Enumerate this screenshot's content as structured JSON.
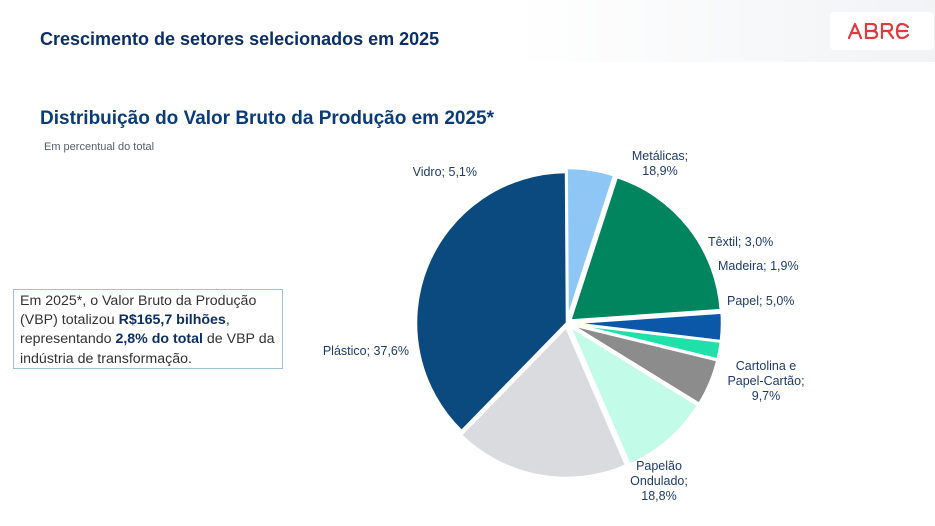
{
  "header": {
    "section_title": "Crescimento de setores selecionados em 2025",
    "logo_text": "ABRE"
  },
  "info_box": {
    "part1": "Em 2025*, o Valor Bruto da Produção (VBP) totalizou ",
    "bold1": "R$165,7 bilhões",
    "part2": ", representando ",
    "bold2": "2,8% do total",
    "part3": " de VBP da indústria de transformação."
  },
  "colors": {
    "title": "#0b3c7a",
    "section_title": "#0b2f66",
    "label": "#1f3b6e",
    "logo": "#e0393e"
  },
  "chart_data": {
    "type": "pie",
    "title": "Distribuição do Valor Bruto da Produção em 2025*",
    "subtitle": "Em percentual do total",
    "unit": "%",
    "slices": [
      {
        "name": "Metálicas",
        "value": 18.9,
        "label_lines": [
          "Metálicas;",
          "18,9%"
        ],
        "color": "#00855f"
      },
      {
        "name": "Têxtil",
        "value": 3.0,
        "label_lines": [
          "Têxtil; 3,0%"
        ],
        "color": "#0b58a8"
      },
      {
        "name": "Madeira",
        "value": 1.9,
        "label_lines": [
          "Madeira; 1,9%"
        ],
        "color": "#1fe0a8"
      },
      {
        "name": "Papel",
        "value": 5.0,
        "label_lines": [
          "Papel; 5,0%"
        ],
        "color": "#8c8c8c"
      },
      {
        "name": "Cartolina e Papel-Cartão",
        "value": 9.7,
        "label_lines": [
          "Cartolina e",
          "Papel-Cartão;",
          "9,7%"
        ],
        "color": "#c3fbe9"
      },
      {
        "name": "Papelão Ondulado",
        "value": 18.8,
        "label_lines": [
          "Papelão",
          "Ondulado;",
          "18,8%"
        ],
        "color": "#d9dbde"
      },
      {
        "name": "Plástico",
        "value": 37.6,
        "label_lines": [
          "Plástico; 37,6%"
        ],
        "color": "#0b4a7f"
      },
      {
        "name": "Vidro",
        "value": 5.1,
        "label_lines": [
          "Vidro; 5,1%"
        ],
        "color": "#8ec6f5"
      }
    ]
  }
}
